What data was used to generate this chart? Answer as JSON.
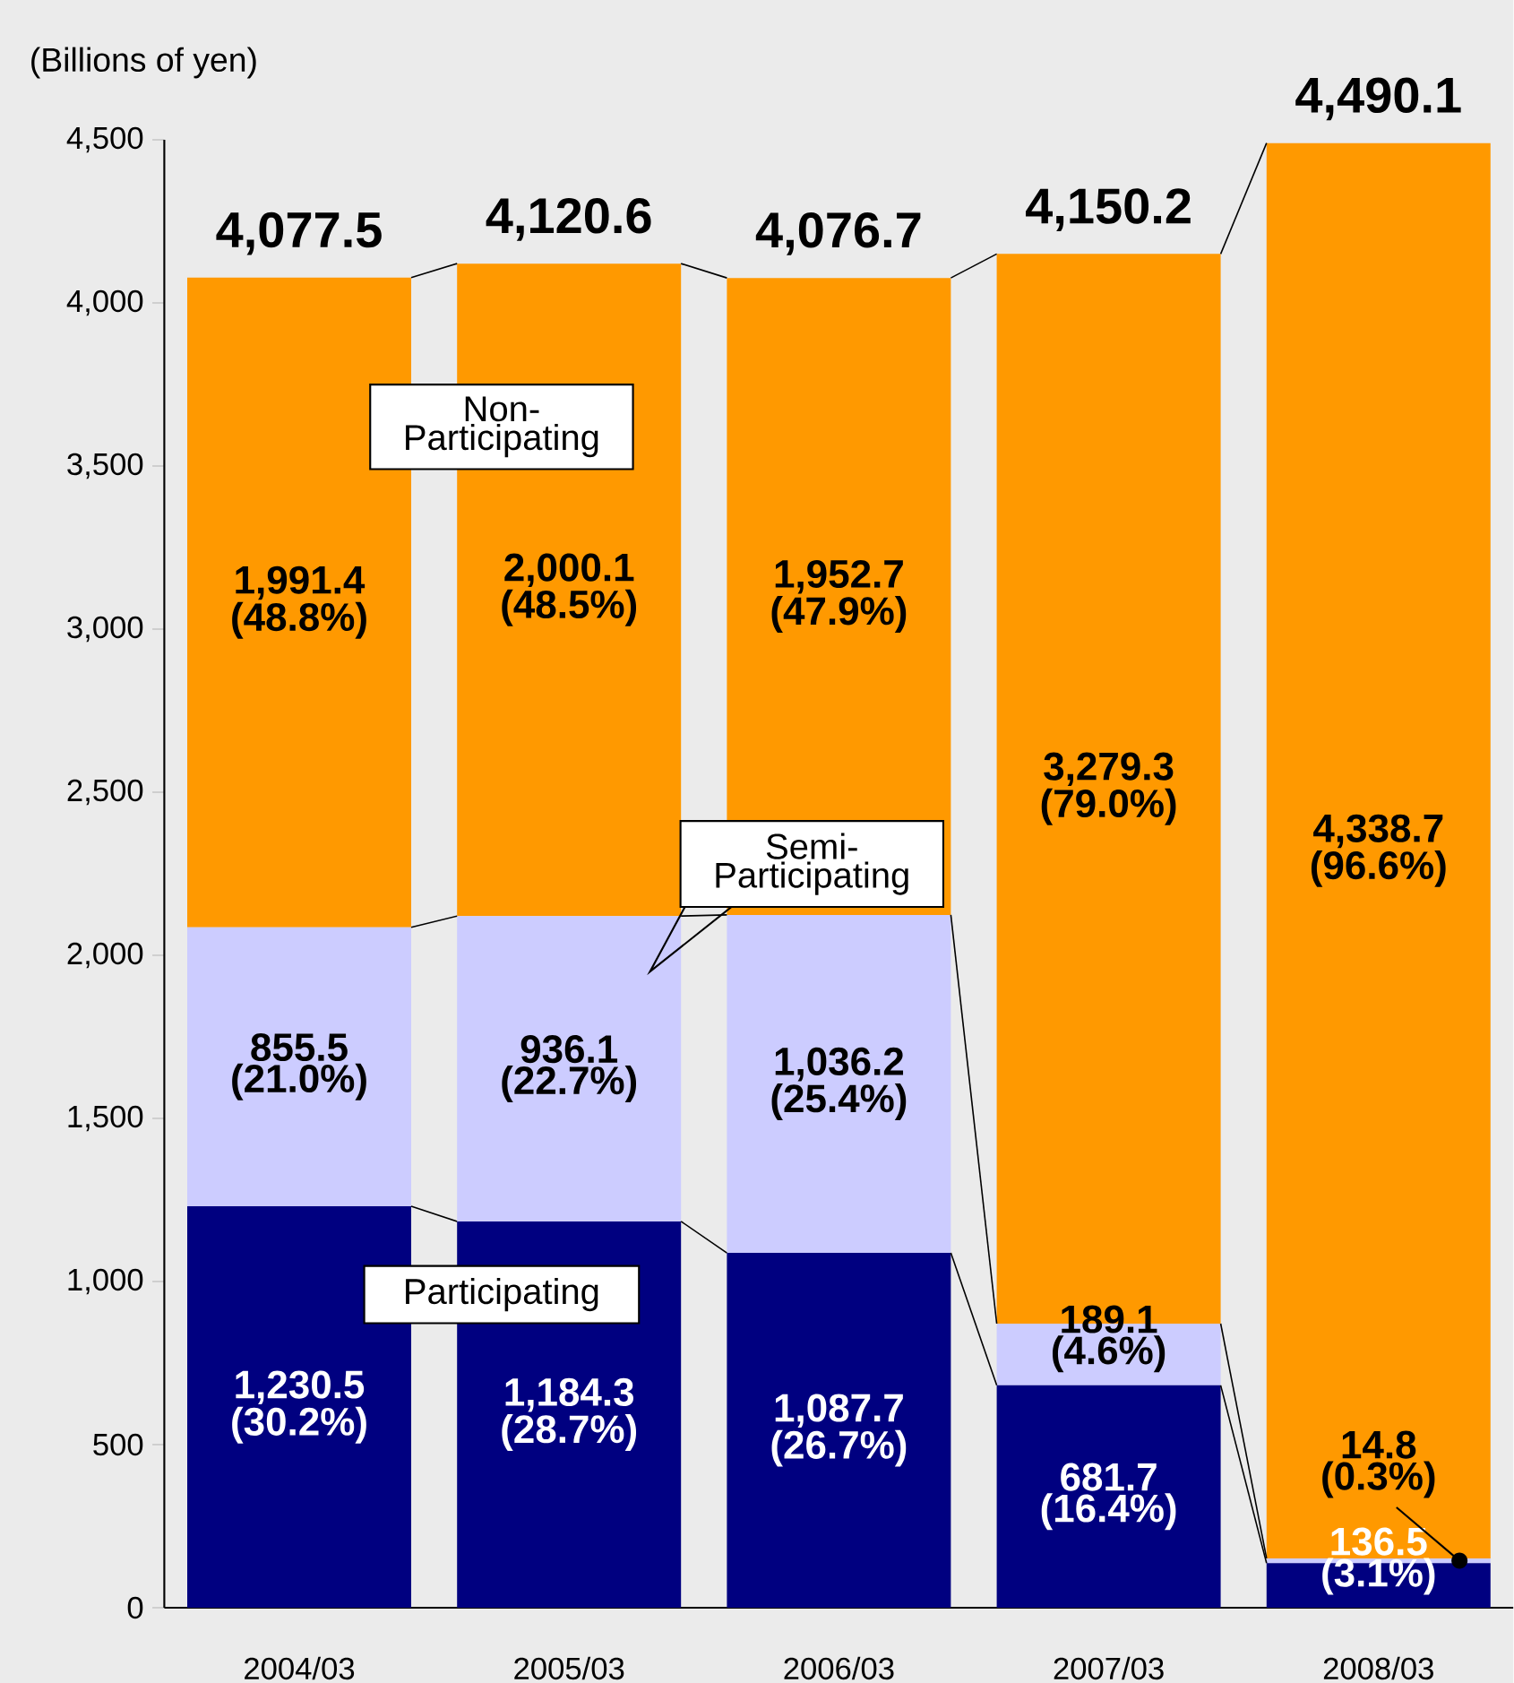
{
  "chart_data": {
    "type": "bar",
    "stacked": true,
    "ylabel": "(Billions of yen)",
    "categories": [
      "2004/03",
      "2005/03",
      "2006/03",
      "2007/03",
      "2008/03"
    ],
    "series": [
      {
        "name": "Participating",
        "color": "#000080",
        "values": [
          1230.5,
          1184.3,
          1087.7,
          681.7,
          136.5
        ],
        "value_labels": [
          "1,230.5 (30.2%)",
          "1,184.3 (28.7%)",
          "1,087.7 (26.7%)",
          "681.7 (16.4%)",
          "136.5 (3.1%)"
        ]
      },
      {
        "name": "Semi-Participating",
        "color": "#ccccff",
        "values": [
          855.5,
          936.1,
          1036.2,
          189.1,
          14.8
        ],
        "value_labels": [
          "855.5 (21.0%)",
          "936.1 (22.7%)",
          "1,036.2 (25.4%)",
          "189.1 (4.6%)",
          "14.8 (0.3%)"
        ]
      },
      {
        "name": "Non-Participating",
        "color": "#ff9900",
        "values": [
          1991.4,
          2000.1,
          1952.7,
          3279.3,
          4338.7
        ],
        "value_labels": [
          "1,991.4 (48.8%)",
          "2,000.1 (48.5%)",
          "1,952.7 (47.9%)",
          "3,279.3 (79.0%)",
          "4,338.7 (96.6%)"
        ]
      }
    ],
    "totals": [
      "4,077.5",
      "4,120.6",
      "4,076.7",
      "4,150.2",
      "4,490.1"
    ],
    "ylim": [
      0,
      4500
    ],
    "yticks": [
      0,
      500,
      {
        "value": 1000,
        "label": "1,000"
      },
      {
        "value": 1500,
        "label": "1,500"
      },
      {
        "value": 2000,
        "label": "2,000"
      },
      {
        "value": 2500,
        "label": "2,500"
      },
      {
        "value": 3000,
        "label": "3,000"
      },
      {
        "value": 3500,
        "label": "3,500"
      },
      {
        "value": 4000,
        "label": "4,000"
      },
      {
        "value": 4500,
        "label": "4,500"
      }
    ],
    "legend": false
  }
}
